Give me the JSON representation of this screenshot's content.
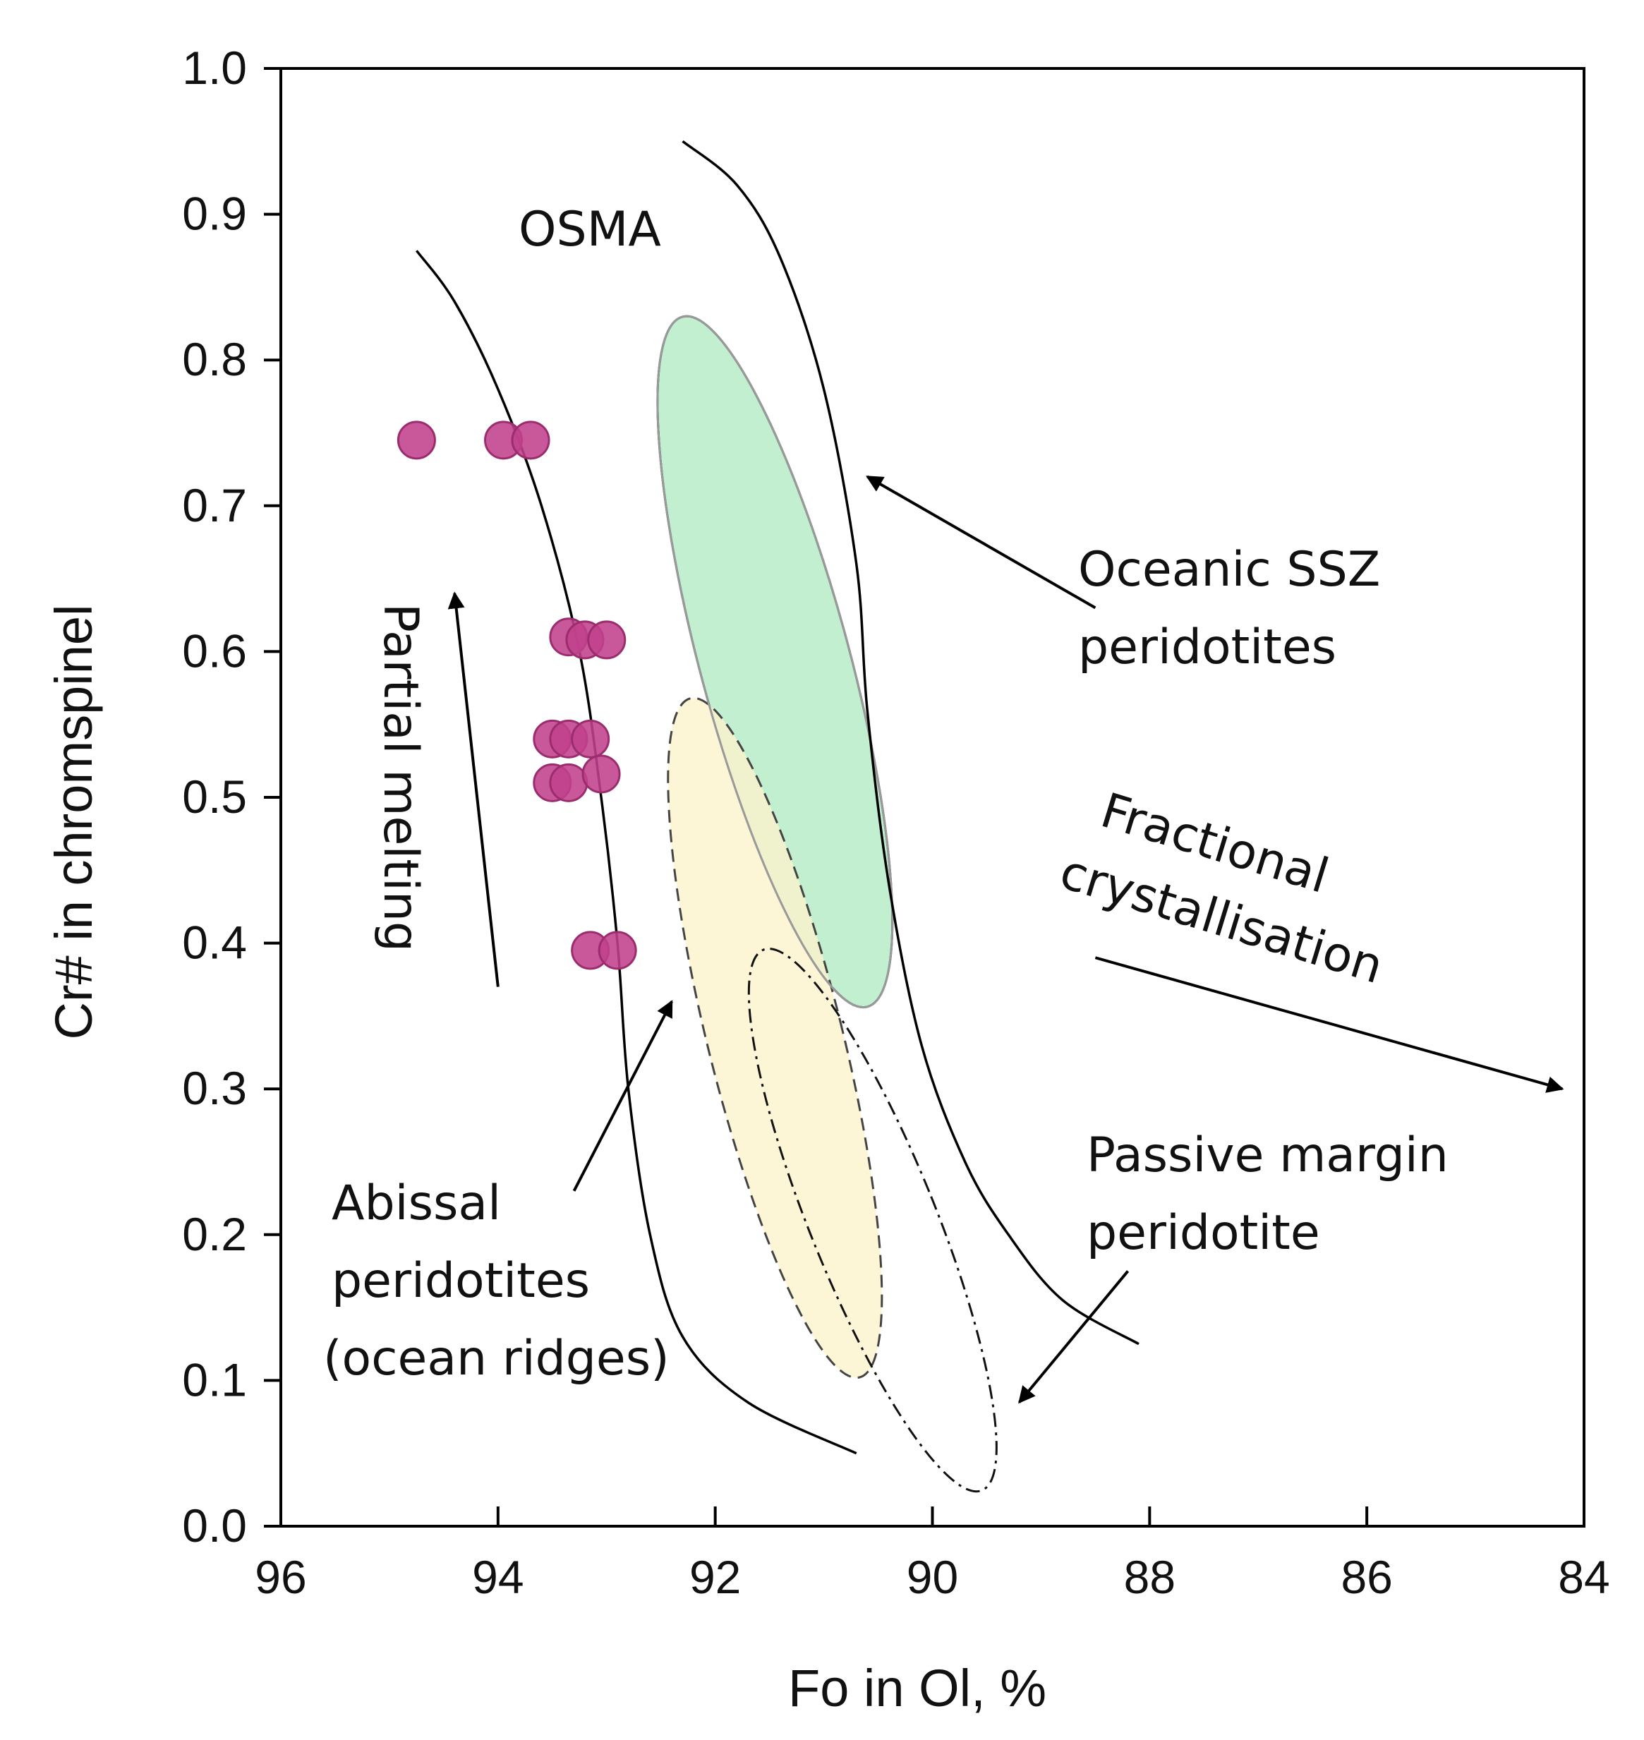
{
  "chart_data": {
    "type": "scatter",
    "xlabel": "Fo in Ol, %",
    "ylabel": "Cr# in chromspinel",
    "xlim": [
      96,
      84
    ],
    "ylim": [
      0.0,
      1.0
    ],
    "x_reversed": true,
    "grid": false,
    "x_ticks": [
      96,
      94,
      92,
      90,
      88,
      86,
      84
    ],
    "x_tick_labels": [
      "96",
      "94",
      "92",
      "90",
      "88",
      "86",
      "84"
    ],
    "y_ticks": [
      0.0,
      0.1,
      0.2,
      0.3,
      0.4,
      0.5,
      0.6,
      0.7,
      0.8,
      0.9,
      1.0
    ],
    "y_tick_labels": [
      "0.0",
      "0.1",
      "0.2",
      "0.3",
      "0.4",
      "0.5",
      "0.6",
      "0.7",
      "0.8",
      "0.9",
      "1.0"
    ],
    "series": [
      {
        "name": "samples",
        "color": "#c0418c",
        "points": [
          {
            "x": 94.75,
            "y": 0.745
          },
          {
            "x": 93.95,
            "y": 0.745
          },
          {
            "x": 93.7,
            "y": 0.745
          },
          {
            "x": 93.35,
            "y": 0.61
          },
          {
            "x": 93.2,
            "y": 0.608
          },
          {
            "x": 93.0,
            "y": 0.608
          },
          {
            "x": 93.5,
            "y": 0.54
          },
          {
            "x": 93.35,
            "y": 0.54
          },
          {
            "x": 93.15,
            "y": 0.54
          },
          {
            "x": 93.5,
            "y": 0.51
          },
          {
            "x": 93.35,
            "y": 0.51
          },
          {
            "x": 93.05,
            "y": 0.516
          },
          {
            "x": 93.15,
            "y": 0.395
          },
          {
            "x": 92.9,
            "y": 0.395
          }
        ]
      }
    ],
    "fields": {
      "osma_left": [
        [
          94.75,
          0.875
        ],
        [
          94.4,
          0.84
        ],
        [
          94.0,
          0.78
        ],
        [
          93.6,
          0.7
        ],
        [
          93.25,
          0.6
        ],
        [
          93.05,
          0.5
        ],
        [
          92.9,
          0.4
        ],
        [
          92.8,
          0.3
        ],
        [
          92.6,
          0.2
        ],
        [
          92.3,
          0.13
        ],
        [
          91.7,
          0.085
        ],
        [
          90.7,
          0.05
        ]
      ],
      "osma_right": [
        [
          92.3,
          0.95
        ],
        [
          91.8,
          0.92
        ],
        [
          91.4,
          0.87
        ],
        [
          91.0,
          0.78
        ],
        [
          90.7,
          0.66
        ],
        [
          90.6,
          0.56
        ],
        [
          90.4,
          0.44
        ],
        [
          90.1,
          0.33
        ],
        [
          89.7,
          0.25
        ],
        [
          89.3,
          0.2
        ],
        [
          88.8,
          0.155
        ],
        [
          88.1,
          0.125
        ]
      ],
      "ssz": {
        "cx": 91.45,
        "cy": 0.593,
        "rx": 0.69,
        "ry": 0.245,
        "rotation_deg": -15,
        "color": "#b6ecc8"
      },
      "abyssal": {
        "cx": 91.45,
        "cy": 0.335,
        "rx": 0.62,
        "ry": 0.24,
        "rotation_deg": -14,
        "color": "#fbf2cc"
      },
      "passive_margin": {
        "cx": 90.55,
        "cy": 0.21,
        "rx": 0.58,
        "ry": 0.2,
        "rotation_deg": -22
      }
    },
    "annotations": {
      "osma": "OSMA",
      "ssz_line1": "Oceanic SSZ",
      "ssz_line2": "peridotites",
      "fc_line1": "Fractional",
      "fc_line2": "crystallisation",
      "pm_line1": "Passive margin",
      "pm_line2": "peridotite",
      "ab_line1": "Abissal",
      "ab_line2": "peridotites",
      "ab_line3": "(ocean ridges)",
      "partial_melting": "Partial melting"
    },
    "arrows": {
      "ssz": [
        [
          88.5,
          0.63
        ],
        [
          90.6,
          0.72
        ]
      ],
      "fc": [
        [
          88.5,
          0.39
        ],
        [
          84.2,
          0.3
        ]
      ],
      "pm": [
        [
          88.2,
          0.175
        ],
        [
          89.2,
          0.085
        ]
      ],
      "ab": [
        [
          93.3,
          0.23
        ],
        [
          92.4,
          0.36
        ]
      ],
      "pm_melt": [
        [
          94.0,
          0.37
        ],
        [
          94.4,
          0.64
        ]
      ]
    }
  }
}
